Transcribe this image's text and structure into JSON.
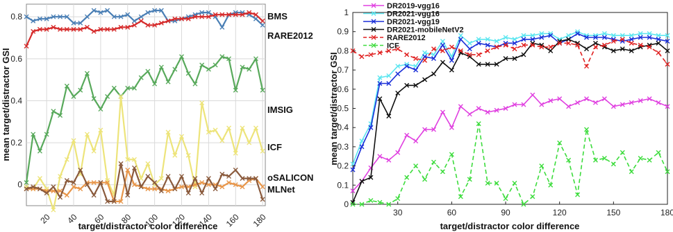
{
  "chart_data": [
    {
      "type": "line",
      "xlabel": "target/distractor color difference",
      "ylabel": "mean target/distractor GSI",
      "xlim": [
        5,
        182
      ],
      "ylim": [
        -0.1,
        0.86
      ],
      "xticks": [
        20,
        40,
        60,
        80,
        100,
        120,
        140,
        160,
        180
      ],
      "yticks": [
        0,
        0.2,
        0.4,
        0.6,
        0.8
      ],
      "ytick_labels": [
        "0",
        "0.2",
        "0.4",
        "0.6",
        "0.8"
      ],
      "x": [
        5,
        10,
        15,
        20,
        25,
        30,
        35,
        40,
        45,
        50,
        55,
        60,
        65,
        70,
        75,
        80,
        85,
        90,
        95,
        100,
        105,
        110,
        115,
        120,
        125,
        130,
        135,
        140,
        145,
        150,
        155,
        160,
        165,
        170,
        175,
        180
      ],
      "series": [
        {
          "name": "BMS",
          "color": "#4a7fb5",
          "marker": "x",
          "values": [
            0.8,
            0.78,
            0.79,
            0.79,
            0.8,
            0.8,
            0.8,
            0.77,
            0.77,
            0.8,
            0.83,
            0.82,
            0.83,
            0.8,
            0.8,
            0.81,
            0.78,
            0.8,
            0.82,
            0.83,
            0.83,
            0.78,
            0.78,
            0.79,
            0.8,
            0.81,
            0.82,
            0.82,
            0.8,
            0.75,
            0.81,
            0.82,
            0.82,
            0.81,
            0.79,
            0.76
          ]
        },
        {
          "name": "RARE2012",
          "color": "#d62b2b",
          "marker": "x",
          "values": [
            0.66,
            0.73,
            0.74,
            0.74,
            0.75,
            0.74,
            0.74,
            0.74,
            0.74,
            0.75,
            0.73,
            0.74,
            0.74,
            0.74,
            0.75,
            0.75,
            0.76,
            0.78,
            0.76,
            0.76,
            0.77,
            0.78,
            0.79,
            0.79,
            0.79,
            0.8,
            0.8,
            0.8,
            0.81,
            0.81,
            0.81,
            0.81,
            0.81,
            0.82,
            0.81,
            0.78
          ]
        },
        {
          "name": "IMSIG",
          "color": "#58a95b",
          "marker": "x",
          "values": [
            0.01,
            0.24,
            0.16,
            0.24,
            0.35,
            0.33,
            0.47,
            0.42,
            0.45,
            0.53,
            0.41,
            0.36,
            0.42,
            0.46,
            0.42,
            0.46,
            0.46,
            0.51,
            0.54,
            0.48,
            0.56,
            0.49,
            0.55,
            0.61,
            0.53,
            0.48,
            0.57,
            0.55,
            0.57,
            0.61,
            0.6,
            0.45,
            0.56,
            0.55,
            0.6,
            0.45
          ]
        },
        {
          "name": "ICF",
          "color": "#ede47a",
          "marker": "x",
          "values": [
            -0.01,
            -0.02,
            0.03,
            -0.02,
            -0.12,
            0.04,
            0.12,
            0.21,
            0.05,
            0.24,
            0.16,
            0.26,
            0.02,
            -0.05,
            0.42,
            0.12,
            0.12,
            0.03,
            0.1,
            0.0,
            0.03,
            0.25,
            0.14,
            0.23,
            0.14,
            -0.01,
            0.39,
            0.25,
            0.26,
            0.21,
            0.27,
            0.15,
            0.27,
            0.2,
            0.27,
            0.16
          ]
        },
        {
          "name": "oSALICON",
          "color": "#e8964a",
          "marker": "x",
          "values": [
            -0.02,
            -0.02,
            -0.02,
            -0.03,
            -0.03,
            -0.03,
            -0.05,
            -0.01,
            -0.02,
            0.01,
            0.01,
            0.01,
            0.01,
            -0.08,
            -0.08,
            0.07,
            0.0,
            -0.01,
            -0.02,
            -0.02,
            -0.02,
            -0.03,
            -0.02,
            -0.01,
            -0.01,
            0.0,
            0.01,
            0.0,
            0.0,
            -0.01,
            0.01,
            0.0,
            -0.01,
            0.02,
            0.03,
            -0.01
          ]
        },
        {
          "name": "MLNet",
          "color": "#8a5a3c",
          "marker": "x",
          "values": [
            -0.02,
            -0.01,
            -0.02,
            -0.04,
            -0.01,
            -0.06,
            0.02,
            0.01,
            0.07,
            0.0,
            -0.05,
            0.01,
            -0.08,
            -0.08,
            0.1,
            -0.05,
            0.08,
            -0.01,
            0.04,
            0.01,
            -0.03,
            0.04,
            -0.02,
            0.04,
            -0.04,
            0.03,
            -0.04,
            0.03,
            -0.02,
            0.05,
            0.04,
            0.07,
            0.03,
            0.03,
            0.03,
            -0.07
          ]
        }
      ]
    },
    {
      "type": "line",
      "xlabel": "target/distractor color difference",
      "ylabel": "mean target/distractor GSI",
      "xlim": [
        5,
        180
      ],
      "ylim": [
        0,
        1
      ],
      "xticks": [
        30,
        60,
        90,
        120,
        150,
        180
      ],
      "yticks": [
        0,
        0.1,
        0.2,
        0.3,
        0.4,
        0.5,
        0.6,
        0.7,
        0.8,
        0.9,
        1
      ],
      "ytick_labels": [
        "0",
        "0.1",
        "0.2",
        "0.3",
        "0.4",
        "0.5",
        "0.6",
        "0.7",
        "0.8",
        "0.9",
        "1"
      ],
      "legend": "top-left",
      "x": [
        5,
        10,
        15,
        20,
        25,
        30,
        35,
        40,
        45,
        50,
        55,
        60,
        65,
        70,
        75,
        80,
        85,
        90,
        95,
        100,
        105,
        110,
        115,
        120,
        125,
        130,
        135,
        140,
        145,
        150,
        155,
        160,
        165,
        170,
        175,
        180
      ],
      "series": [
        {
          "name": "DR2019-vgg16",
          "color": "#e040e0",
          "marker": "x",
          "dash": "solid",
          "values": [
            0.07,
            0.12,
            0.19,
            0.25,
            0.23,
            0.27,
            0.36,
            0.33,
            0.39,
            0.39,
            0.48,
            0.4,
            0.51,
            0.47,
            0.5,
            0.48,
            0.49,
            0.5,
            0.52,
            0.52,
            0.57,
            0.52,
            0.54,
            0.55,
            0.51,
            0.53,
            0.55,
            0.53,
            0.55,
            0.51,
            0.52,
            0.53,
            0.54,
            0.55,
            0.53,
            0.51
          ]
        },
        {
          "name": "DR2021-vgg16",
          "color": "#5ce6f0",
          "marker": "x",
          "dash": "solid",
          "values": [
            0.21,
            0.33,
            0.42,
            0.66,
            0.67,
            0.72,
            0.73,
            0.72,
            0.79,
            0.78,
            0.85,
            0.77,
            0.88,
            0.84,
            0.86,
            0.86,
            0.85,
            0.87,
            0.86,
            0.88,
            0.88,
            0.89,
            0.89,
            0.86,
            0.88,
            0.9,
            0.88,
            0.88,
            0.89,
            0.88,
            0.88,
            0.88,
            0.89,
            0.89,
            0.88,
            0.88
          ]
        },
        {
          "name": "DR2021-vgg19",
          "color": "#1a2fd8",
          "marker": "x",
          "dash": "solid",
          "values": [
            0.18,
            0.3,
            0.4,
            0.63,
            0.63,
            0.68,
            0.72,
            0.7,
            0.77,
            0.76,
            0.83,
            0.75,
            0.86,
            0.81,
            0.84,
            0.83,
            0.82,
            0.84,
            0.84,
            0.86,
            0.86,
            0.87,
            0.88,
            0.84,
            0.86,
            0.89,
            0.87,
            0.87,
            0.87,
            0.86,
            0.85,
            0.86,
            0.87,
            0.87,
            0.86,
            0.85
          ]
        },
        {
          "name": "DR2021-mobileNetV2",
          "color": "#111111",
          "marker": "x",
          "dash": "solid",
          "values": [
            0.01,
            0.12,
            0.14,
            0.55,
            0.46,
            0.58,
            0.62,
            0.62,
            0.65,
            0.68,
            0.74,
            0.7,
            0.79,
            0.77,
            0.73,
            0.73,
            0.73,
            0.76,
            0.76,
            0.78,
            0.84,
            0.83,
            0.8,
            0.85,
            0.86,
            0.84,
            0.81,
            0.84,
            0.82,
            0.8,
            0.81,
            0.8,
            0.82,
            0.83,
            0.84,
            0.8
          ]
        },
        {
          "name": "RARE2012",
          "color": "#e02020",
          "marker": "x",
          "dash": "dashed",
          "values": [
            0.8,
            0.77,
            0.78,
            0.79,
            0.8,
            0.81,
            0.78,
            0.76,
            0.75,
            0.81,
            0.8,
            0.82,
            0.8,
            0.78,
            0.78,
            0.8,
            0.82,
            0.83,
            0.81,
            0.83,
            0.83,
            0.82,
            0.82,
            0.84,
            0.84,
            0.83,
            0.72,
            0.82,
            0.83,
            0.85,
            0.86,
            0.84,
            0.83,
            0.82,
            0.79,
            0.73
          ]
        },
        {
          "name": "ICF",
          "color": "#3ddc3d",
          "marker": "x",
          "dash": "dashed",
          "values": [
            0.0,
            0.0,
            0.02,
            0.01,
            0.0,
            0.03,
            0.14,
            0.2,
            0.13,
            0.22,
            0.17,
            0.26,
            0.04,
            0.13,
            0.42,
            0.11,
            0.11,
            0.03,
            0.11,
            0.0,
            0.04,
            0.2,
            0.1,
            0.32,
            0.23,
            0.05,
            0.39,
            0.23,
            0.24,
            0.21,
            0.27,
            0.17,
            0.24,
            0.23,
            0.27,
            0.17
          ]
        }
      ]
    }
  ]
}
